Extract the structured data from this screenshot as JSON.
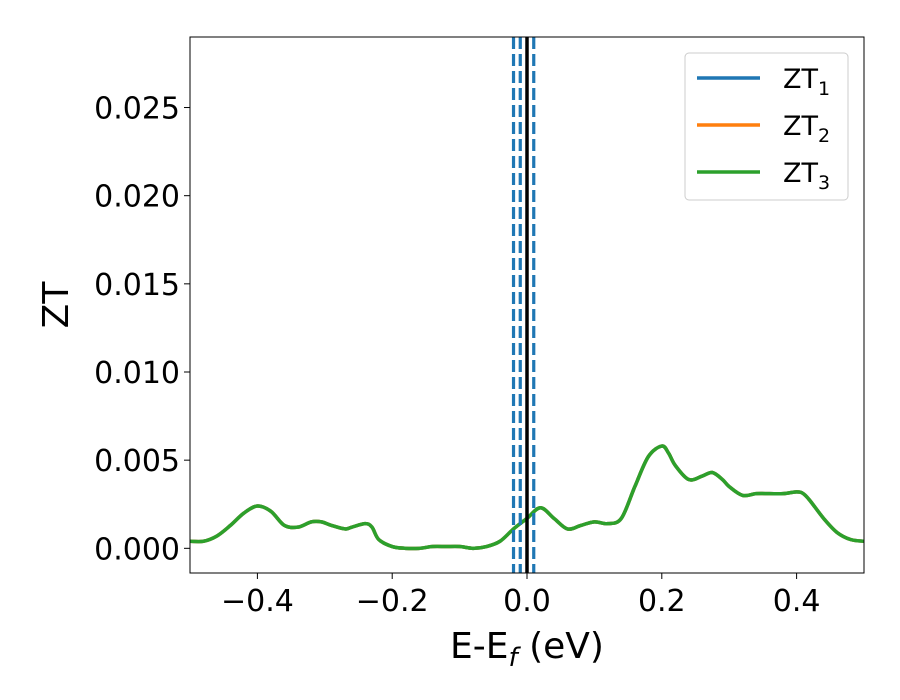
{
  "chart_data": {
    "type": "line",
    "title": "",
    "xlabel": "E-E",
    "xlabel_sub": "f",
    "xlabel_unit": " (eV)",
    "ylabel": "ZT",
    "xlim": [
      -0.5,
      0.5
    ],
    "ylim": [
      -0.0014,
      0.029
    ],
    "xticks": [
      -0.4,
      -0.2,
      0.0,
      0.2,
      0.4
    ],
    "xtick_labels": [
      "−0.4",
      "−0.2",
      "0.0",
      "0.2",
      "0.4"
    ],
    "yticks": [
      0.0,
      0.005,
      0.01,
      0.015,
      0.02,
      0.025
    ],
    "ytick_labels": [
      "0.000",
      "0.005",
      "0.010",
      "0.015",
      "0.020",
      "0.025"
    ],
    "grid": false,
    "legend_position": "top-right",
    "x": [
      -0.5,
      -0.48,
      -0.46,
      -0.44,
      -0.42,
      -0.4,
      -0.38,
      -0.36,
      -0.34,
      -0.32,
      -0.305,
      -0.29,
      -0.27,
      -0.26,
      -0.24,
      -0.23,
      -0.22,
      -0.2,
      -0.18,
      -0.16,
      -0.14,
      -0.12,
      -0.1,
      -0.08,
      -0.06,
      -0.04,
      -0.02,
      0.0,
      0.02,
      0.04,
      0.06,
      0.08,
      0.1,
      0.12,
      0.14,
      0.16,
      0.18,
      0.2,
      0.21,
      0.22,
      0.24,
      0.26,
      0.275,
      0.29,
      0.3,
      0.32,
      0.34,
      0.36,
      0.38,
      0.4,
      0.41,
      0.42,
      0.44,
      0.46,
      0.48,
      0.5
    ],
    "series": [
      {
        "name": "ZT",
        "name_sub": "1",
        "color": "#1f77b4",
        "values": [
          0.0004,
          0.0004,
          0.0007,
          0.0013,
          0.002,
          0.0024,
          0.0021,
          0.0013,
          0.0012,
          0.0015,
          0.0015,
          0.0013,
          0.0011,
          0.0012,
          0.0014,
          0.0012,
          0.0005,
          0.0001,
          0.0,
          0.0,
          0.0001,
          0.0001,
          0.0001,
          0.0,
          0.0001,
          0.0004,
          0.0011,
          0.0017,
          0.0023,
          0.0017,
          0.0011,
          0.0013,
          0.0015,
          0.0014,
          0.0017,
          0.0035,
          0.0052,
          0.0058,
          0.0054,
          0.0047,
          0.0039,
          0.0041,
          0.0043,
          0.0039,
          0.0035,
          0.003,
          0.0031,
          0.0031,
          0.0031,
          0.0032,
          0.0031,
          0.0027,
          0.0017,
          0.0009,
          0.0005,
          0.0004
        ]
      },
      {
        "name": "ZT",
        "name_sub": "2",
        "color": "#ff7f0e",
        "values": [
          0.0004,
          0.0004,
          0.0007,
          0.0013,
          0.002,
          0.0024,
          0.0021,
          0.0013,
          0.0012,
          0.0015,
          0.0015,
          0.0013,
          0.0011,
          0.0012,
          0.0014,
          0.0012,
          0.0005,
          0.0001,
          0.0,
          0.0,
          0.0001,
          0.0001,
          0.0001,
          0.0,
          0.0001,
          0.0004,
          0.0011,
          0.0017,
          0.0023,
          0.0017,
          0.0011,
          0.0013,
          0.0015,
          0.0014,
          0.0017,
          0.0035,
          0.0052,
          0.0058,
          0.0054,
          0.0047,
          0.0039,
          0.0041,
          0.0043,
          0.0039,
          0.0035,
          0.003,
          0.0031,
          0.0031,
          0.0031,
          0.0032,
          0.0031,
          0.0027,
          0.0017,
          0.0009,
          0.0005,
          0.0004
        ]
      },
      {
        "name": "ZT",
        "name_sub": "3",
        "color": "#2ca02c",
        "values": [
          0.0004,
          0.0004,
          0.0007,
          0.0013,
          0.002,
          0.0024,
          0.0021,
          0.0013,
          0.0012,
          0.0015,
          0.0015,
          0.0013,
          0.0011,
          0.0012,
          0.0014,
          0.0012,
          0.0005,
          0.0001,
          0.0,
          0.0,
          0.0001,
          0.0001,
          0.0001,
          0.0,
          0.0001,
          0.0004,
          0.0011,
          0.0017,
          0.0023,
          0.0017,
          0.0011,
          0.0013,
          0.0015,
          0.0014,
          0.0017,
          0.0035,
          0.0052,
          0.0058,
          0.0054,
          0.0047,
          0.0039,
          0.0041,
          0.0043,
          0.0039,
          0.0035,
          0.003,
          0.0031,
          0.0031,
          0.0031,
          0.0032,
          0.0031,
          0.0027,
          0.0017,
          0.0009,
          0.0005,
          0.0004
        ]
      }
    ],
    "vlines": [
      {
        "x": 0.0,
        "style": "solid",
        "color": "#000000"
      },
      {
        "x": -0.02,
        "style": "dashed",
        "color": "#1f77b4"
      },
      {
        "x": -0.01,
        "style": "dashed",
        "color": "#1f77b4"
      },
      {
        "x": 0.01,
        "style": "dashed",
        "color": "#1f77b4"
      }
    ]
  }
}
